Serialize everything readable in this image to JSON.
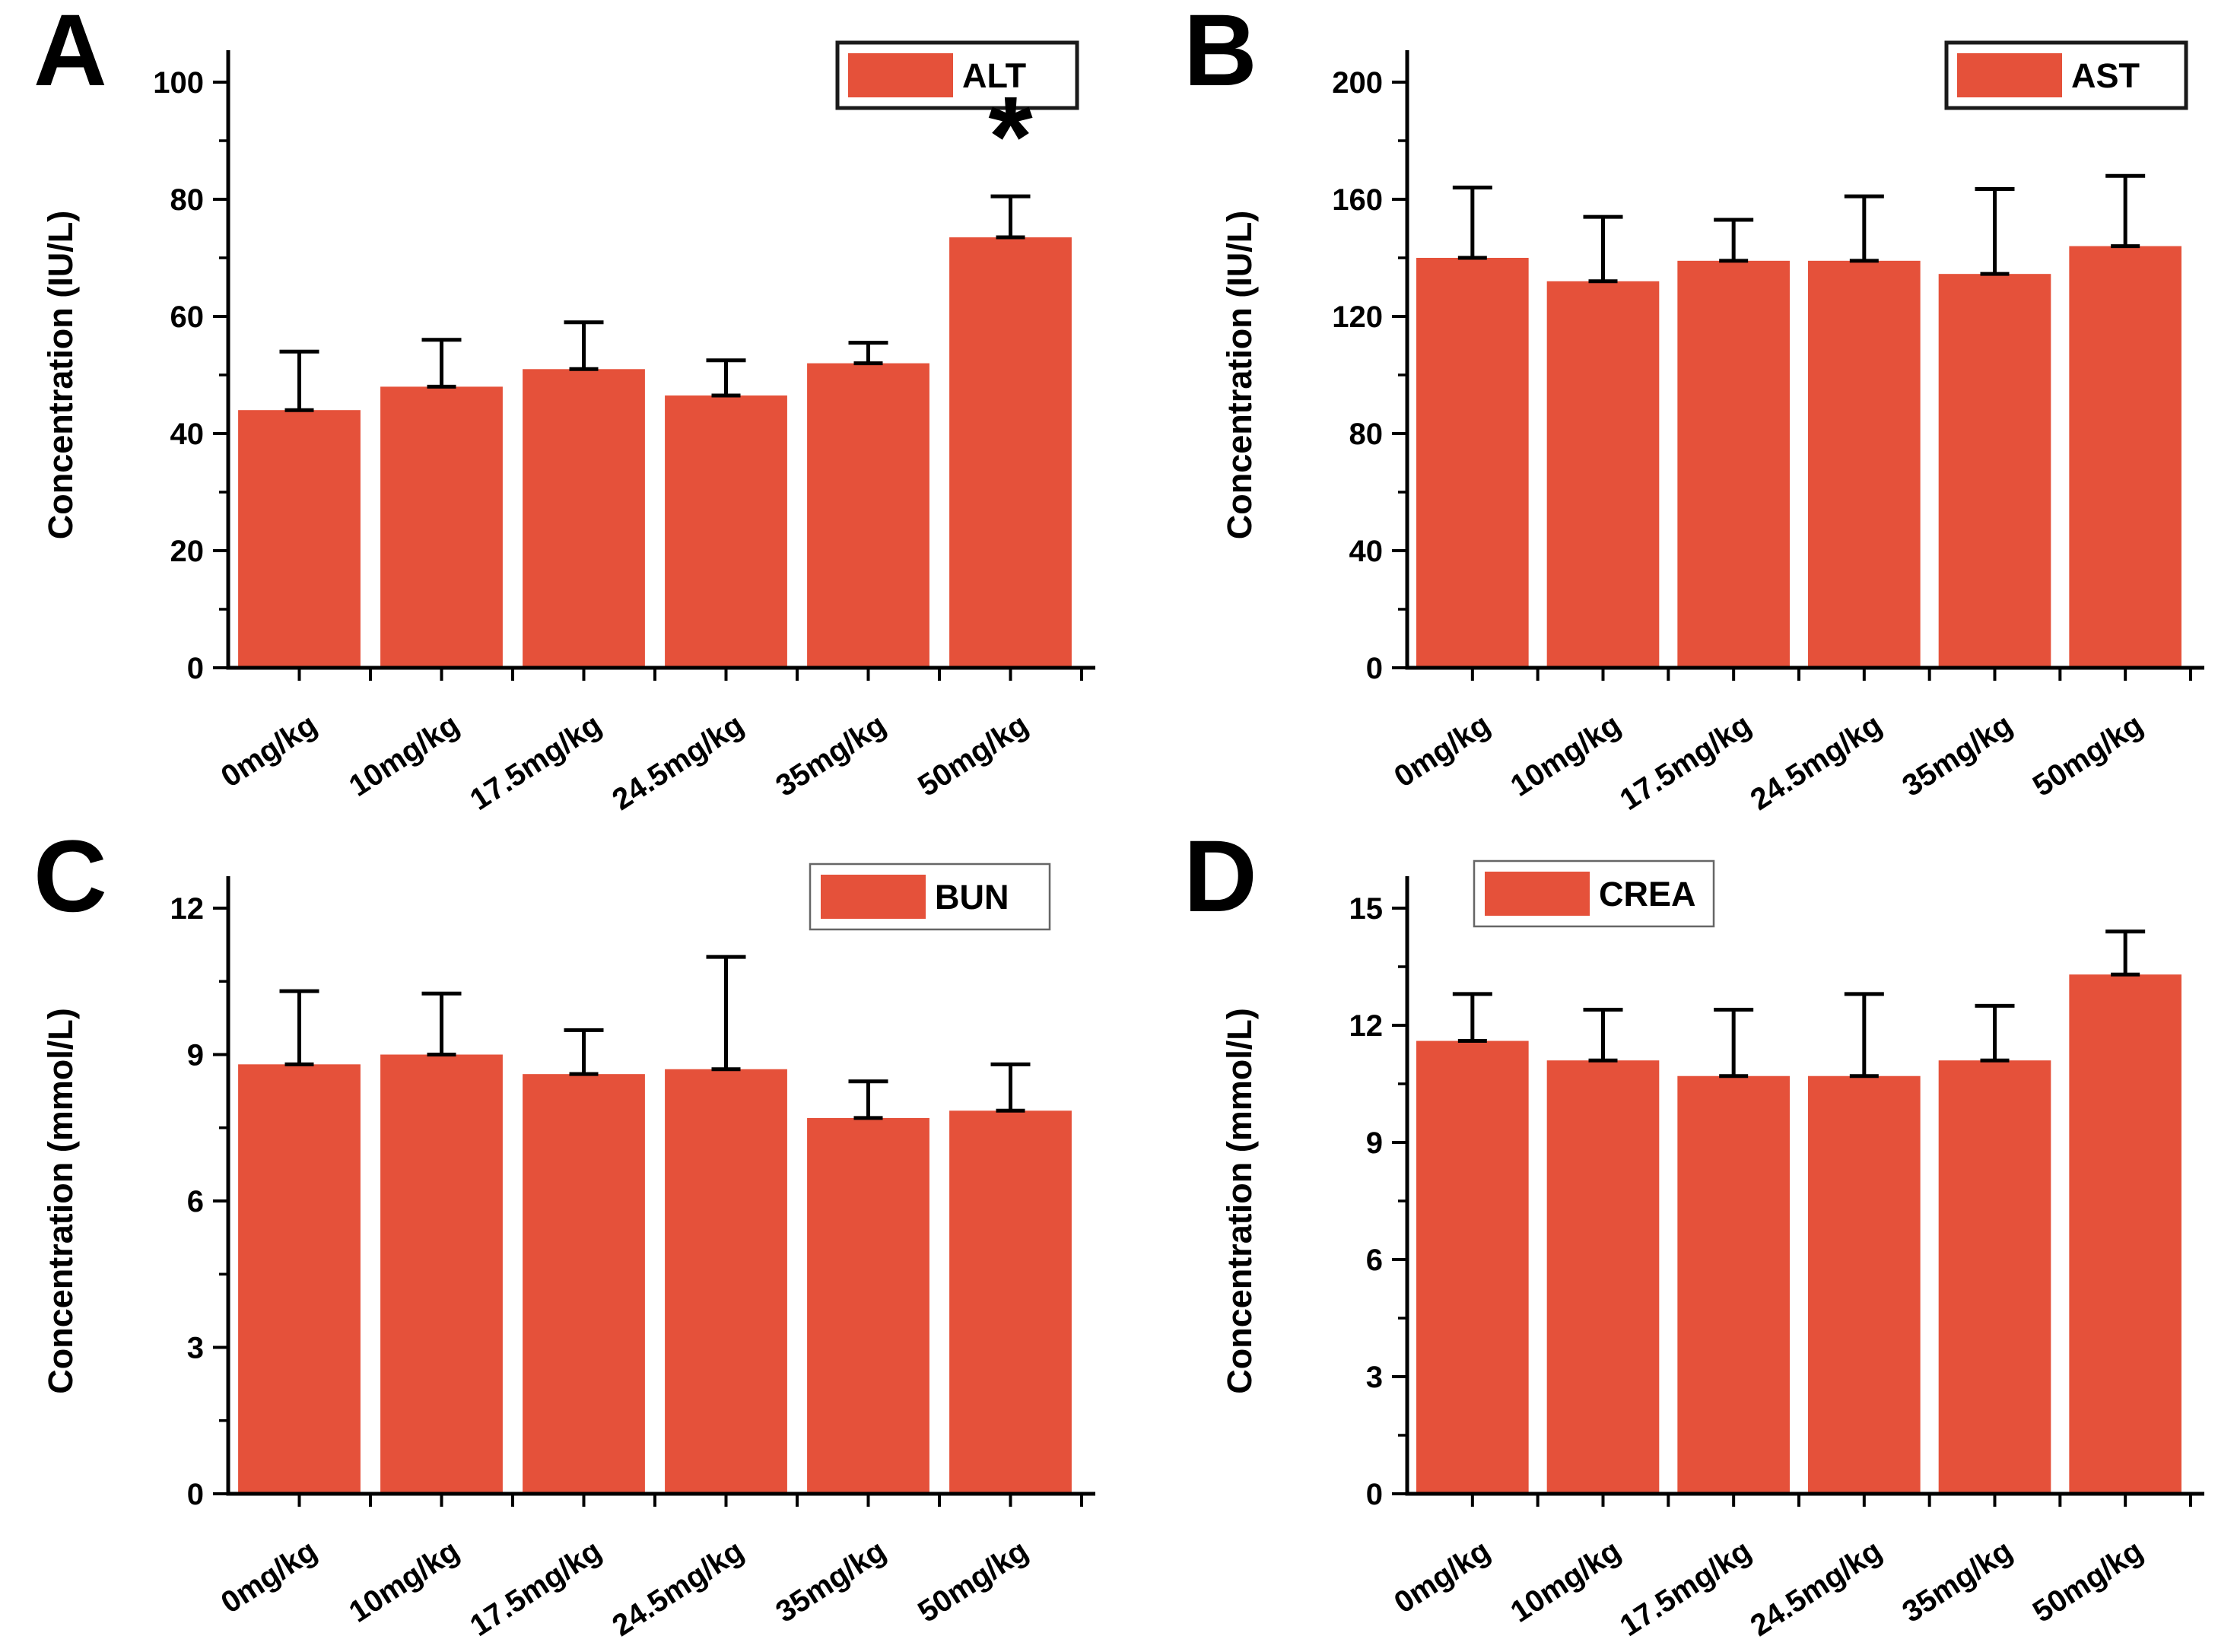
{
  "figure": {
    "background": "#ffffff",
    "bar_color": "#e5513a",
    "axis_color": "#000000",
    "error_color": "#000000",
    "legend_thick_border_color": "#1a1a1a",
    "legend_thin_border_color": "#666666"
  },
  "chart_data": [
    {
      "type": "bar",
      "panel": "A",
      "legend": "ALT",
      "legend_position": "top-right",
      "legend_border": "thick",
      "ylabel": "Concentration (IU/L)",
      "xlabel": "",
      "ylim": [
        0,
        100
      ],
      "ytick_step": 20,
      "yticks": [
        0,
        20,
        40,
        60,
        80,
        100
      ],
      "categories": [
        "0mg/kg",
        "10mg/kg",
        "17.5mg/kg",
        "24.5mg/kg",
        "35mg/kg",
        "50mg/kg"
      ],
      "values": [
        44,
        48,
        51,
        46.5,
        52,
        73.5
      ],
      "errors": [
        10,
        8,
        8,
        6,
        3.5,
        7
      ],
      "annotations": [
        {
          "index": 5,
          "text": "*",
          "y": 84
        }
      ]
    },
    {
      "type": "bar",
      "panel": "B",
      "legend": "AST",
      "legend_position": "top-right",
      "legend_border": "thick",
      "ylabel": "Concentration (IU/L)",
      "xlabel": "",
      "ylim": [
        0,
        200
      ],
      "ytick_step": 40,
      "yticks": [
        0,
        40,
        80,
        120,
        160,
        200
      ],
      "categories": [
        "0mg/kg",
        "10mg/kg",
        "17.5mg/kg",
        "24.5mg/kg",
        "35mg/kg",
        "50mg/kg"
      ],
      "values": [
        140,
        132,
        139,
        139,
        134.5,
        144
      ],
      "errors": [
        24,
        22,
        14,
        22,
        29,
        24
      ],
      "annotations": []
    },
    {
      "type": "bar",
      "panel": "C",
      "legend": "BUN",
      "legend_position": "top-right-inset",
      "legend_border": "thin",
      "ylabel": "Concentration (mmol/L)",
      "xlabel": "",
      "ylim": [
        0,
        12
      ],
      "ytick_step": 3,
      "yticks": [
        0,
        3,
        6,
        9,
        12
      ],
      "categories": [
        "0mg/kg",
        "10mg/kg",
        "17.5mg/kg",
        "24.5mg/kg",
        "35mg/kg",
        "50mg/kg"
      ],
      "values": [
        8.8,
        9.0,
        8.6,
        8.7,
        7.7,
        7.85
      ],
      "errors": [
        1.5,
        1.25,
        0.9,
        2.3,
        0.75,
        0.95
      ],
      "annotations": []
    },
    {
      "type": "bar",
      "panel": "D",
      "legend": "CREA",
      "legend_position": "top-left",
      "legend_border": "thin",
      "ylabel": "Concentration (mmol/L)",
      "xlabel": "",
      "ylim": [
        0,
        15
      ],
      "ytick_step": 3,
      "yticks": [
        0,
        3,
        6,
        9,
        12,
        15
      ],
      "categories": [
        "0mg/kg",
        "10mg/kg",
        "17.5mg/kg",
        "24.5mg/kg",
        "35mg/kg",
        "50mg/kg"
      ],
      "values": [
        11.6,
        11.1,
        10.7,
        10.7,
        11.1,
        13.3
      ],
      "errors": [
        1.2,
        1.3,
        1.7,
        2.1,
        1.4,
        1.1
      ],
      "annotations": []
    }
  ]
}
